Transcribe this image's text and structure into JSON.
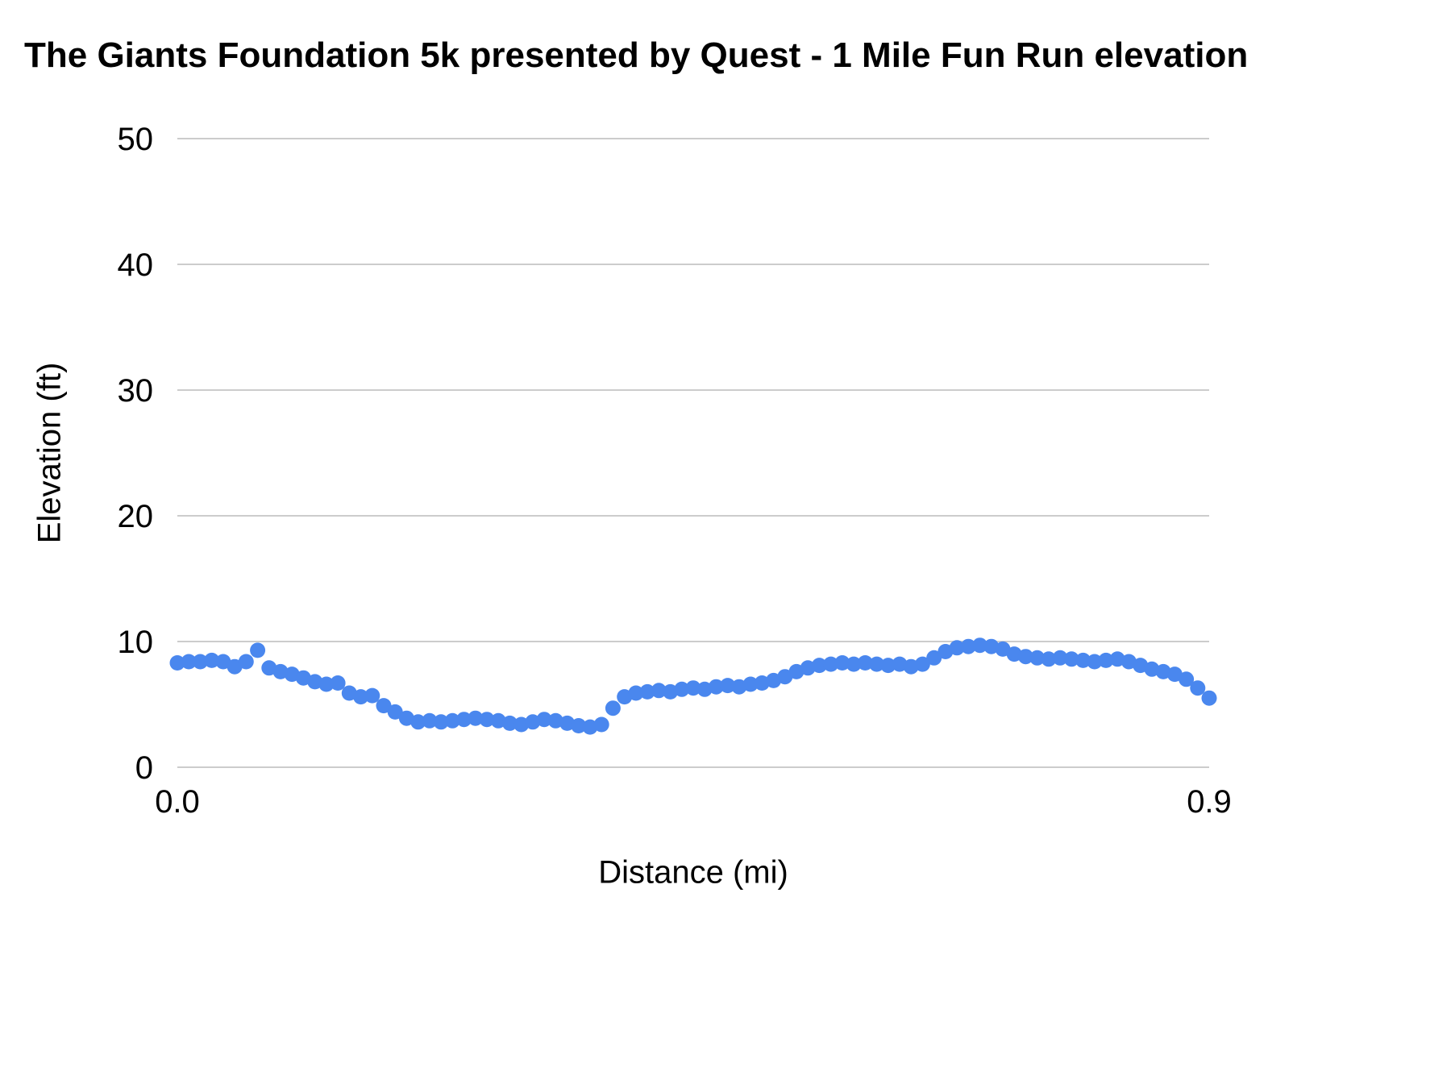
{
  "chart_data": {
    "type": "scatter",
    "title": "The Giants Foundation 5k presented by Quest - 1 Mile Fun Run elevation",
    "xlabel": "Distance (mi)",
    "ylabel": "Elevation (ft)",
    "xlim": [
      0,
      0.9
    ],
    "ylim": [
      0,
      50
    ],
    "y_ticks": [
      0,
      10,
      20,
      30,
      40,
      50
    ],
    "x_tick_values": [
      0,
      0.9
    ],
    "x_tick_labels": [
      "0.0",
      "0.9"
    ],
    "grid": "horizontal",
    "legend": "none",
    "point_color": "#4a87ee",
    "grid_color": "#cccccc",
    "x": [
      0.0,
      0.01,
      0.02,
      0.03,
      0.04,
      0.05,
      0.06,
      0.07,
      0.08,
      0.09,
      0.1,
      0.11,
      0.12,
      0.13,
      0.14,
      0.15,
      0.16,
      0.17,
      0.18,
      0.19,
      0.2,
      0.21,
      0.22,
      0.23,
      0.24,
      0.25,
      0.26,
      0.27,
      0.28,
      0.29,
      0.3,
      0.31,
      0.32,
      0.33,
      0.34,
      0.35,
      0.36,
      0.37,
      0.38,
      0.39,
      0.4,
      0.41,
      0.42,
      0.43,
      0.44,
      0.45,
      0.46,
      0.47,
      0.48,
      0.49,
      0.5,
      0.51,
      0.52,
      0.53,
      0.54,
      0.55,
      0.56,
      0.57,
      0.58,
      0.59,
      0.6,
      0.61,
      0.62,
      0.63,
      0.64,
      0.65,
      0.66,
      0.67,
      0.68,
      0.69,
      0.7,
      0.71,
      0.72,
      0.73,
      0.74,
      0.75,
      0.76,
      0.77,
      0.78,
      0.79,
      0.8,
      0.81,
      0.82,
      0.83,
      0.84,
      0.85,
      0.86,
      0.87,
      0.88,
      0.89,
      0.9
    ],
    "y": [
      8.3,
      8.4,
      8.4,
      8.5,
      8.4,
      8.0,
      8.4,
      9.3,
      7.9,
      7.6,
      7.4,
      7.1,
      6.8,
      6.6,
      6.7,
      5.9,
      5.6,
      5.7,
      4.9,
      4.4,
      3.9,
      3.6,
      3.7,
      3.6,
      3.7,
      3.8,
      3.9,
      3.8,
      3.7,
      3.5,
      3.4,
      3.6,
      3.8,
      3.7,
      3.5,
      3.3,
      3.2,
      3.4,
      4.7,
      5.6,
      5.9,
      6.0,
      6.1,
      6.0,
      6.2,
      6.3,
      6.2,
      6.4,
      6.5,
      6.4,
      6.6,
      6.7,
      6.9,
      7.2,
      7.6,
      7.9,
      8.1,
      8.2,
      8.3,
      8.2,
      8.3,
      8.2,
      8.1,
      8.2,
      8.0,
      8.2,
      8.7,
      9.2,
      9.5,
      9.6,
      9.7,
      9.6,
      9.4,
      9.0,
      8.8,
      8.7,
      8.6,
      8.7,
      8.6,
      8.5,
      8.4,
      8.5,
      8.6,
      8.4,
      8.1,
      7.8,
      7.6,
      7.4,
      7.0,
      6.3,
      5.5
    ]
  }
}
